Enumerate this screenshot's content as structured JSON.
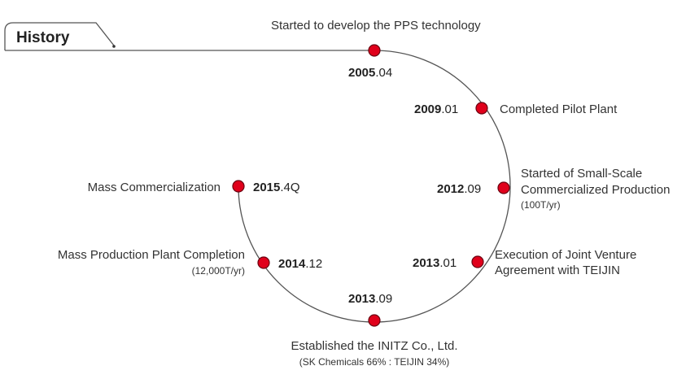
{
  "header": {
    "title": "History"
  },
  "timeline": [
    {
      "year": "2005",
      "period": ".04",
      "labels": [
        "Started to develop the PPS technology"
      ],
      "note": ""
    },
    {
      "year": "2009",
      "period": ".01",
      "labels": [
        "Completed Pilot Plant"
      ],
      "note": ""
    },
    {
      "year": "2012",
      "period": ".09",
      "labels": [
        "Started of Small-Scale",
        "Commercialized Production"
      ],
      "note": "(100T/yr)"
    },
    {
      "year": "2013",
      "period": ".01",
      "labels": [
        "Execution of Joint Venture",
        "Agreement with TEIJIN"
      ],
      "note": ""
    },
    {
      "year": "2013",
      "period": ".09",
      "labels": [
        "Established the INITZ Co., Ltd."
      ],
      "note": "(SK Chemicals 66% : TEIJIN 34%)"
    },
    {
      "year": "2014",
      "period": ".12",
      "labels": [
        "Mass Production Plant Completion"
      ],
      "note": "(12,000T/yr)"
    },
    {
      "year": "2015",
      "period": ".4Q",
      "labels": [
        "Mass Commercialization"
      ],
      "note": ""
    }
  ],
  "colors": {
    "line": "#555555",
    "marker": "#e0001b",
    "marker_outline": "#6b0010",
    "text": "#333333"
  }
}
